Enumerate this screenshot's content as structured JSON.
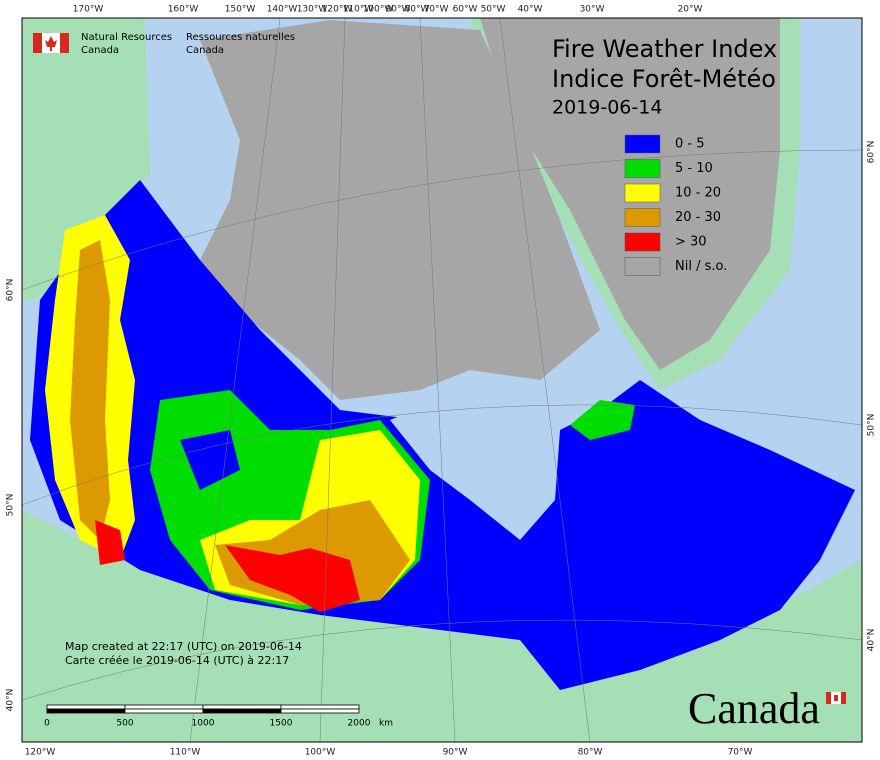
{
  "header": {
    "title": "Fire Weather Index",
    "title_fr": "Indice Forêt-Météo",
    "date": "2019-06-14"
  },
  "agency": {
    "en": [
      "Natural Resources",
      "Canada"
    ],
    "fr": [
      "Ressources naturelles",
      "Canada"
    ]
  },
  "legend": [
    {
      "label": "0 - 5",
      "color": "#0000ff"
    },
    {
      "label": "5 - 10",
      "color": "#00dd00"
    },
    {
      "label": "10 - 20",
      "color": "#ffff00"
    },
    {
      "label": "20 - 30",
      "color": "#dd9900"
    },
    {
      "label": "> 30",
      "color": "#ff0000"
    },
    {
      "label": "Nil / s.o.",
      "color": "#a6a6a6"
    }
  ],
  "graticule": {
    "top": [
      "170°W",
      "160°W",
      "150°W",
      "140°W",
      "130°W",
      "120°W",
      "110°W",
      "100°W",
      "90°W",
      "80°W",
      "70°W",
      "60°W",
      "50°W",
      "40°W",
      "30°W",
      "20°W"
    ],
    "bottom": [
      "120°W",
      "110°W",
      "100°W",
      "90°W",
      "80°W",
      "70°W"
    ],
    "left": [
      "60°N",
      "50°N",
      "40°N"
    ],
    "right": [
      "60°N",
      "50°N",
      "40°N"
    ]
  },
  "footer": {
    "created_en": "Map created at 22:17 (UTC) on 2019-06-14",
    "created_fr": "Carte créée le 2019-06-14 (UTC) à 22:17"
  },
  "scale_bar": {
    "labels": [
      0,
      500,
      1000,
      1500,
      2000
    ],
    "unit": "km"
  },
  "wordmark": "Canada"
}
